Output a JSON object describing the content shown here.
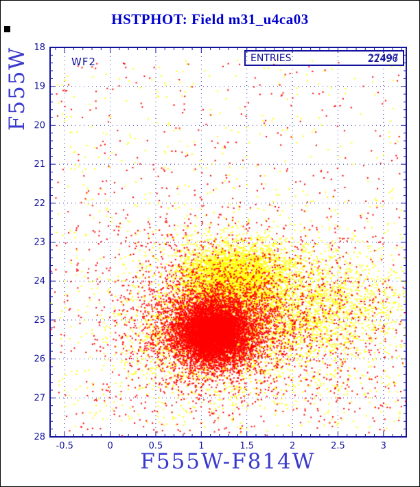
{
  "header": {
    "title": "HSTPHOT: Field m31_u4ca03"
  },
  "colors": {
    "background": "#ffffff",
    "border": "#000000",
    "title": "#0000cd",
    "axis": "#12129e",
    "grid": "#2a2ab4",
    "axis_label": "#3a3acd",
    "series_red": "#ff0000",
    "series_yellow": "#ffff00"
  },
  "chart_data": {
    "type": "scatter",
    "title": "HSTPHOT: Field m31_u4ca03",
    "xlabel": "F555W-F814W",
    "ylabel": "F555W",
    "xlim": [
      -0.66,
      3.25
    ],
    "ylim": [
      18,
      28
    ],
    "y_axis_inverted_magnitudes": true,
    "grid": true,
    "seed": 7,
    "x_ticks": [
      {
        "v": -0.5,
        "label": "-0.5"
      },
      {
        "v": 0,
        "label": "0"
      },
      {
        "v": 0.5,
        "label": "0.5"
      },
      {
        "v": 1,
        "label": "1"
      },
      {
        "v": 1.5,
        "label": "1.5"
      },
      {
        "v": 2,
        "label": "2"
      },
      {
        "v": 2.5,
        "label": "2.5"
      },
      {
        "v": 3,
        "label": "3"
      }
    ],
    "y_ticks": [
      {
        "v": 18,
        "label": "18"
      },
      {
        "v": 19,
        "label": "19"
      },
      {
        "v": 20,
        "label": "20"
      },
      {
        "v": 21,
        "label": "21"
      },
      {
        "v": 22,
        "label": "22"
      },
      {
        "v": 23,
        "label": "23"
      },
      {
        "v": 24,
        "label": "24"
      },
      {
        "v": 25,
        "label": "25"
      },
      {
        "v": 26,
        "label": "26"
      },
      {
        "v": 27,
        "label": "27"
      },
      {
        "v": 28,
        "label": "28"
      }
    ],
    "annotations": {
      "chip_label": "WF2",
      "entries_label": "ENTRIES",
      "entries_values": [
        "27497",
        "22496"
      ]
    },
    "series": [
      {
        "name": "yellow-points",
        "color": "#ffff00",
        "marker_px": 2,
        "clusters": [
          {
            "n": 3500,
            "cx": 1.35,
            "cy": 23.95,
            "sx": 0.3,
            "sy": 0.45
          },
          {
            "n": 1600,
            "cx": 2.25,
            "cy": 24.7,
            "sx": 0.55,
            "sy": 0.75
          },
          {
            "n": 1500,
            "cx": 1.15,
            "cy": 25.4,
            "sx": 0.45,
            "sy": 0.6
          },
          {
            "n": 1500,
            "cx": 1.4,
            "cy": 24.8,
            "sx": 0.85,
            "sy": 1.2
          }
        ],
        "uniform": [
          {
            "n": 260,
            "x": [
              -0.6,
              3.2
            ],
            "y": [
              18.3,
              23.0
            ]
          },
          {
            "n": 200,
            "x": [
              -0.6,
              3.2
            ],
            "y": [
              26.3,
              27.8
            ]
          }
        ]
      },
      {
        "name": "red-points",
        "color": "#ff0000",
        "marker_px": 2,
        "clusters": [
          {
            "n": 5200,
            "cx": 1.13,
            "cy": 25.35,
            "sx": 0.17,
            "sy": 0.33
          },
          {
            "n": 3000,
            "cx": 1.15,
            "cy": 25.25,
            "sx": 0.28,
            "sy": 0.55
          },
          {
            "n": 1800,
            "cx": 1.2,
            "cy": 25.0,
            "sx": 0.5,
            "sy": 0.85
          },
          {
            "n": 1000,
            "cx": 1.3,
            "cy": 24.8,
            "sx": 0.95,
            "sy": 1.4
          },
          {
            "n": 260,
            "cx": 2.4,
            "cy": 25.2,
            "sx": 0.5,
            "sy": 0.9
          }
        ],
        "uniform": [
          {
            "n": 300,
            "x": [
              -0.6,
              3.2
            ],
            "y": [
              18.3,
              23.5
            ]
          },
          {
            "n": 160,
            "x": [
              -0.6,
              3.2
            ],
            "y": [
              26.5,
              27.9
            ]
          }
        ]
      }
    ]
  }
}
